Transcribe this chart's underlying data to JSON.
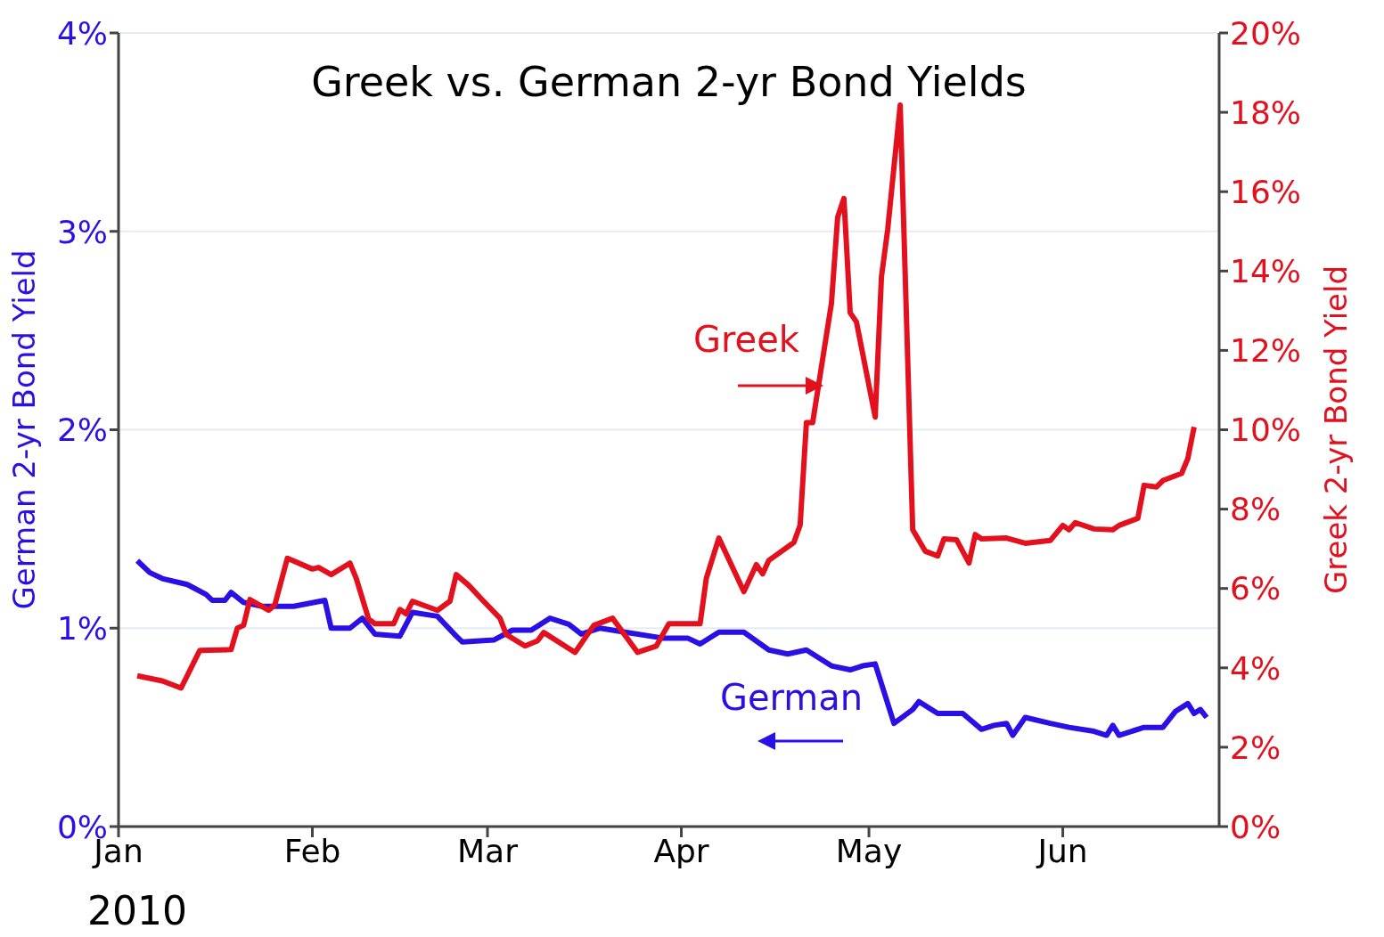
{
  "chart_data": {
    "type": "line",
    "title": "Greek vs. German 2-yr Bond Yields",
    "xlabel": "2010",
    "ylabel": "German 2-yr Bond Yield",
    "y2label": "Greek 2-yr Bond Yield",
    "xlim": [
      "2010-01-01",
      "2010-06-26"
    ],
    "xticks": [
      {
        "value": "2010-01-01",
        "label": "Jan"
      },
      {
        "value": "2010-02-01",
        "label": "Feb"
      },
      {
        "value": "2010-03-01",
        "label": "Mar"
      },
      {
        "value": "2010-04-01",
        "label": "Apr"
      },
      {
        "value": "2010-05-01",
        "label": "May"
      },
      {
        "value": "2010-06-01",
        "label": "Jun"
      }
    ],
    "ylim": [
      0,
      4
    ],
    "yticks": [
      {
        "value": 0,
        "label": "0%"
      },
      {
        "value": 1,
        "label": "1%"
      },
      {
        "value": 2,
        "label": "2%"
      },
      {
        "value": 3,
        "label": "3%"
      },
      {
        "value": 4,
        "label": "4%"
      }
    ],
    "y2lim": [
      0,
      20
    ],
    "y2ticks": [
      {
        "value": 0,
        "label": "0%"
      },
      {
        "value": 2,
        "label": "2%"
      },
      {
        "value": 4,
        "label": "4%"
      },
      {
        "value": 6,
        "label": "6%"
      },
      {
        "value": 8,
        "label": "8%"
      },
      {
        "value": 10,
        "label": "10%"
      },
      {
        "value": 12,
        "label": "12%"
      },
      {
        "value": 14,
        "label": "14%"
      },
      {
        "value": 16,
        "label": "16%"
      },
      {
        "value": 18,
        "label": "18%"
      },
      {
        "value": 20,
        "label": "20%"
      }
    ],
    "grid": "y",
    "legend": false,
    "marker": "none",
    "line_style": "solid",
    "series": [
      {
        "name": "German",
        "color": "#2b10e6",
        "x": [
          "2010-01-04",
          "2010-01-06",
          "2010-01-08",
          "2010-01-12",
          "2010-01-15",
          "2010-01-16",
          "2010-01-18",
          "2010-01-19",
          "2010-01-21",
          "2010-01-24",
          "2010-01-29",
          "2010-02-03",
          "2010-02-04",
          "2010-02-07",
          "2010-02-09",
          "2010-02-11",
          "2010-02-15",
          "2010-02-17",
          "2010-02-21",
          "2010-02-24",
          "2010-02-25",
          "2010-03-02",
          "2010-03-05",
          "2010-03-08",
          "2010-03-11",
          "2010-03-14",
          "2010-03-16",
          "2010-03-19",
          "2010-03-23",
          "2010-03-29",
          "2010-04-02",
          "2010-04-04",
          "2010-04-07",
          "2010-04-11",
          "2010-04-15",
          "2010-04-18",
          "2010-04-21",
          "2010-04-25",
          "2010-04-28",
          "2010-04-30",
          "2010-05-02",
          "2010-05-05",
          "2010-05-08",
          "2010-05-09",
          "2010-05-12",
          "2010-05-16",
          "2010-05-19",
          "2010-05-21",
          "2010-05-23",
          "2010-05-24",
          "2010-05-26",
          "2010-05-30",
          "2010-06-02",
          "2010-06-06",
          "2010-06-08",
          "2010-06-09",
          "2010-06-10",
          "2010-06-14",
          "2010-06-17",
          "2010-06-19",
          "2010-06-21",
          "2010-06-22",
          "2010-06-23",
          "2010-06-24"
        ],
        "values": [
          1.34,
          1.28,
          1.25,
          1.22,
          1.17,
          1.14,
          1.14,
          1.18,
          1.13,
          1.11,
          1.11,
          1.14,
          1.0,
          1.0,
          1.05,
          0.97,
          0.96,
          1.08,
          1.06,
          0.96,
          0.93,
          0.94,
          0.99,
          0.99,
          1.05,
          1.02,
          0.97,
          1.0,
          0.98,
          0.95,
          0.95,
          0.92,
          0.98,
          0.98,
          0.89,
          0.87,
          0.89,
          0.81,
          0.79,
          0.81,
          0.82,
          0.52,
          0.59,
          0.63,
          0.57,
          0.57,
          0.49,
          0.51,
          0.52,
          0.46,
          0.55,
          0.52,
          0.5,
          0.48,
          0.46,
          0.51,
          0.46,
          0.5,
          0.5,
          0.58,
          0.62,
          0.57,
          0.59,
          0.55
        ]
      },
      {
        "name": "Greek",
        "color": "#e3101e",
        "axis": "y2",
        "x": [
          "2010-01-04",
          "2010-01-08",
          "2010-01-11",
          "2010-01-14",
          "2010-01-19",
          "2010-01-20",
          "2010-01-21",
          "2010-01-22",
          "2010-01-25",
          "2010-01-26",
          "2010-01-28",
          "2010-02-01",
          "2010-02-02",
          "2010-02-04",
          "2010-02-07",
          "2010-02-08",
          "2010-02-10",
          "2010-02-11",
          "2010-02-14",
          "2010-02-15",
          "2010-02-16",
          "2010-02-17",
          "2010-02-21",
          "2010-02-23",
          "2010-02-24",
          "2010-02-26",
          "2010-02-28",
          "2010-03-03",
          "2010-03-04",
          "2010-03-07",
          "2010-03-09",
          "2010-03-10",
          "2010-03-15",
          "2010-03-18",
          "2010-03-21",
          "2010-03-25",
          "2010-03-28",
          "2010-03-30",
          "2010-04-04",
          "2010-04-05",
          "2010-04-07",
          "2010-04-11",
          "2010-04-13",
          "2010-04-14",
          "2010-04-15",
          "2010-04-19",
          "2010-04-20",
          "2010-04-21",
          "2010-04-22",
          "2010-04-25",
          "2010-04-26",
          "2010-04-27",
          "2010-04-28",
          "2010-04-29",
          "2010-05-02",
          "2010-05-03",
          "2010-05-04",
          "2010-05-06",
          "2010-05-08",
          "2010-05-10",
          "2010-05-12",
          "2010-05-13",
          "2010-05-15",
          "2010-05-17",
          "2010-05-18",
          "2010-05-19",
          "2010-05-23",
          "2010-05-26",
          "2010-05-30",
          "2010-06-01",
          "2010-06-02",
          "2010-06-03",
          "2010-06-06",
          "2010-06-09",
          "2010-06-10",
          "2010-06-13",
          "2010-06-14",
          "2010-06-16",
          "2010-06-17",
          "2010-06-20",
          "2010-06-21",
          "2010-06-22"
        ],
        "values": [
          3.8,
          3.67,
          3.49,
          4.44,
          4.46,
          5.0,
          5.07,
          5.72,
          5.45,
          5.59,
          6.76,
          6.49,
          6.53,
          6.35,
          6.64,
          6.26,
          5.23,
          5.11,
          5.11,
          5.47,
          5.36,
          5.68,
          5.45,
          5.68,
          6.35,
          6.08,
          5.74,
          5.25,
          4.84,
          4.55,
          4.68,
          4.89,
          4.39,
          5.07,
          5.25,
          4.39,
          4.55,
          5.11,
          5.11,
          6.26,
          7.27,
          5.92,
          6.6,
          6.37,
          6.71,
          7.16,
          7.6,
          10.18,
          10.18,
          13.18,
          15.36,
          15.83,
          12.95,
          12.72,
          10.32,
          13.85,
          15.05,
          18.18,
          7.48,
          6.94,
          6.82,
          7.25,
          7.23,
          6.64,
          7.36,
          7.25,
          7.27,
          7.14,
          7.21,
          7.59,
          7.48,
          7.66,
          7.5,
          7.48,
          7.59,
          7.77,
          8.6,
          8.56,
          8.72,
          8.9,
          9.28,
          10.07
        ]
      }
    ]
  }
}
